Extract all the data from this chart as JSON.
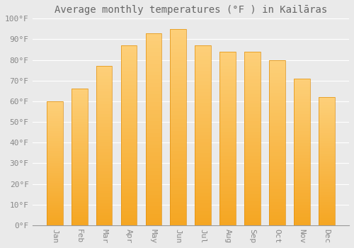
{
  "title": "Average monthly temperatures (°F ) in Kailāras",
  "months": [
    "Jan",
    "Feb",
    "Mar",
    "Apr",
    "May",
    "Jun",
    "Jul",
    "Aug",
    "Sep",
    "Oct",
    "Nov",
    "Dec"
  ],
  "values": [
    60,
    66,
    77,
    87,
    93,
    95,
    87,
    84,
    84,
    80,
    71,
    62
  ],
  "bar_color_bottom": "#F5A623",
  "bar_color_top": "#FDD07A",
  "bar_edge_color": "#E09010",
  "background_color": "#EAEAEA",
  "plot_bg_color": "#EAEAEA",
  "grid_color": "#FFFFFF",
  "text_color": "#888888",
  "title_color": "#666666",
  "ylim": [
    0,
    100
  ],
  "yticks": [
    0,
    10,
    20,
    30,
    40,
    50,
    60,
    70,
    80,
    90,
    100
  ],
  "ytick_labels": [
    "0°F",
    "10°F",
    "20°F",
    "30°F",
    "40°F",
    "50°F",
    "60°F",
    "70°F",
    "80°F",
    "90°F",
    "100°F"
  ],
  "title_fontsize": 10,
  "tick_fontsize": 8,
  "figsize": [
    5.0,
    3.5
  ],
  "dpi": 100,
  "bar_width": 0.65
}
